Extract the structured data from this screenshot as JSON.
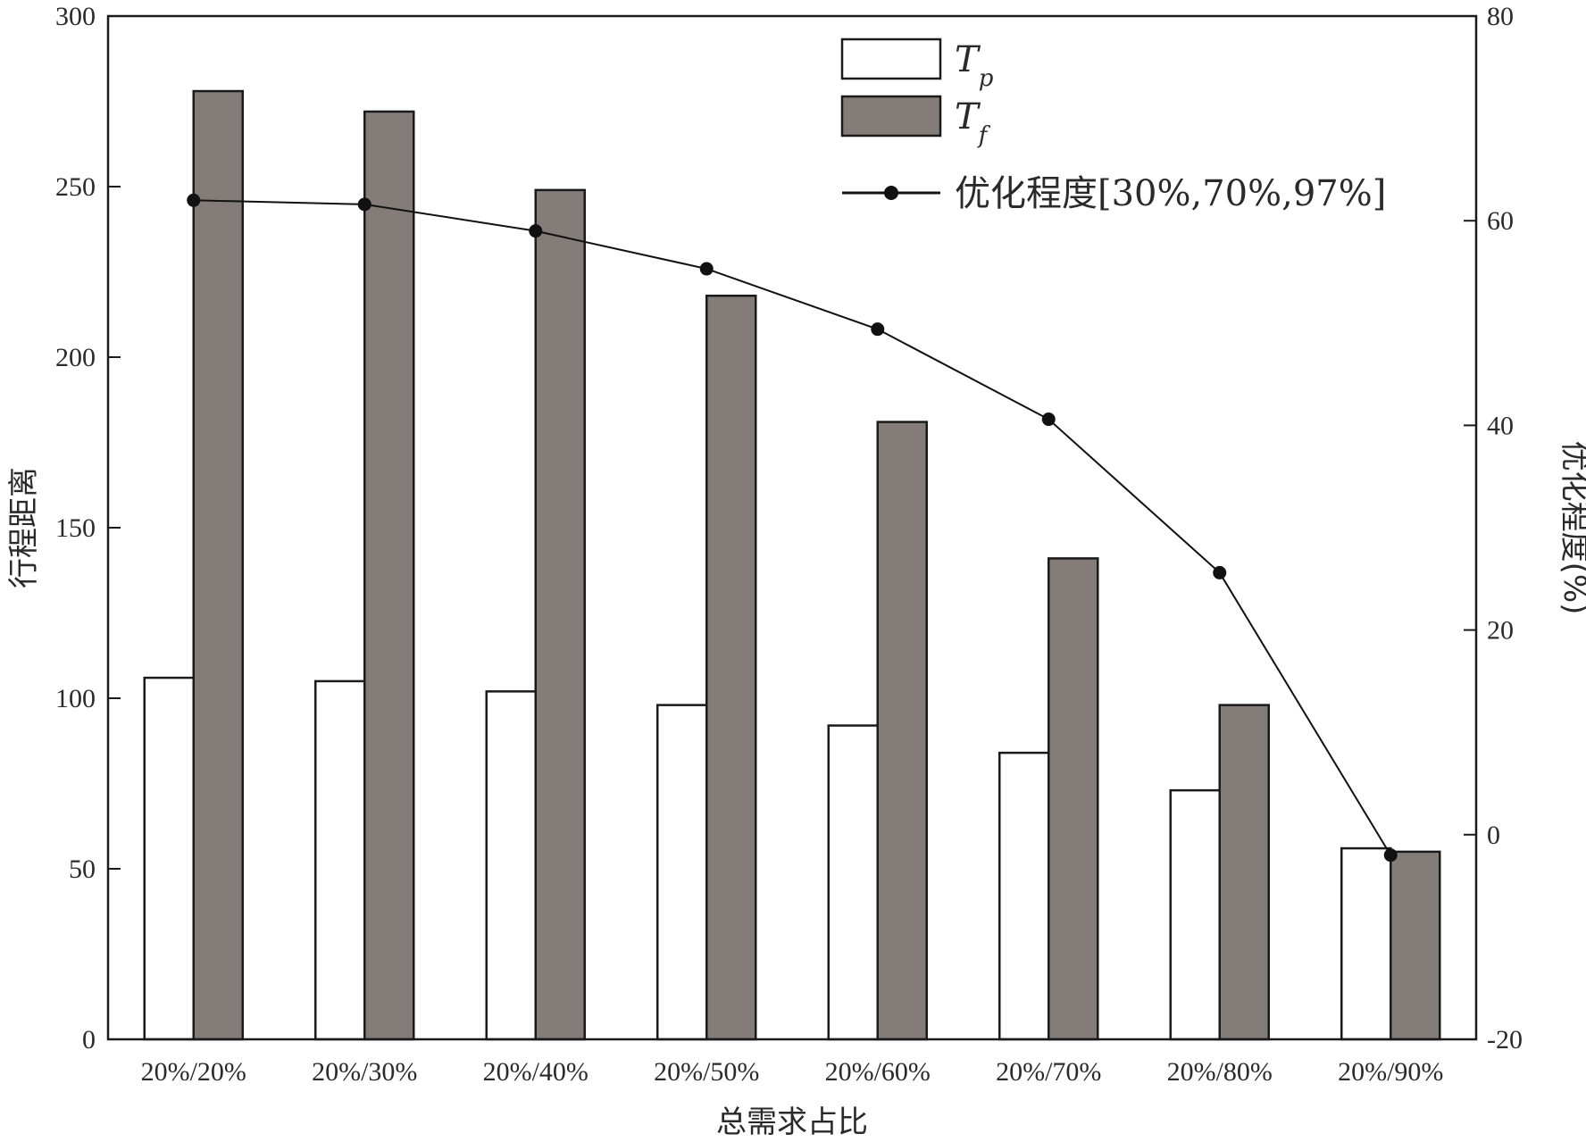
{
  "chart_data": {
    "type": "bar",
    "categories": [
      "20%/20%",
      "20%/30%",
      "20%/40%",
      "20%/50%",
      "20%/60%",
      "20%/70%",
      "20%/80%",
      "20%/90%"
    ],
    "series": [
      {
        "name": "Tp",
        "name_main": "T",
        "name_sub": "p",
        "kind": "bar",
        "axis": "left",
        "color": "#ffffff",
        "values": [
          106,
          105,
          102,
          98,
          92,
          84,
          73,
          56
        ]
      },
      {
        "name": "Tf",
        "name_main": "T",
        "name_sub": "f",
        "kind": "bar",
        "axis": "left",
        "color": "#847c78",
        "values": [
          278,
          272,
          249,
          218,
          181,
          141,
          98,
          55
        ]
      },
      {
        "name": "优化程度[30%,70%,97%]",
        "kind": "line",
        "axis": "right",
        "color": "#111111",
        "values": [
          62,
          61.6,
          59,
          55.3,
          49.4,
          40.6,
          25.6,
          -2
        ]
      }
    ],
    "xlabel": "总需求占比",
    "ylabel": "行程距离",
    "y2label": "优化程度(%)",
    "ylim": [
      0,
      300
    ],
    "y2lim": [
      -20,
      80
    ],
    "yticks": [
      0,
      50,
      100,
      150,
      200,
      250,
      300
    ],
    "y2ticks": [
      -20,
      0,
      20,
      40,
      60,
      80
    ],
    "grid": false,
    "legend_position": "top-right"
  }
}
